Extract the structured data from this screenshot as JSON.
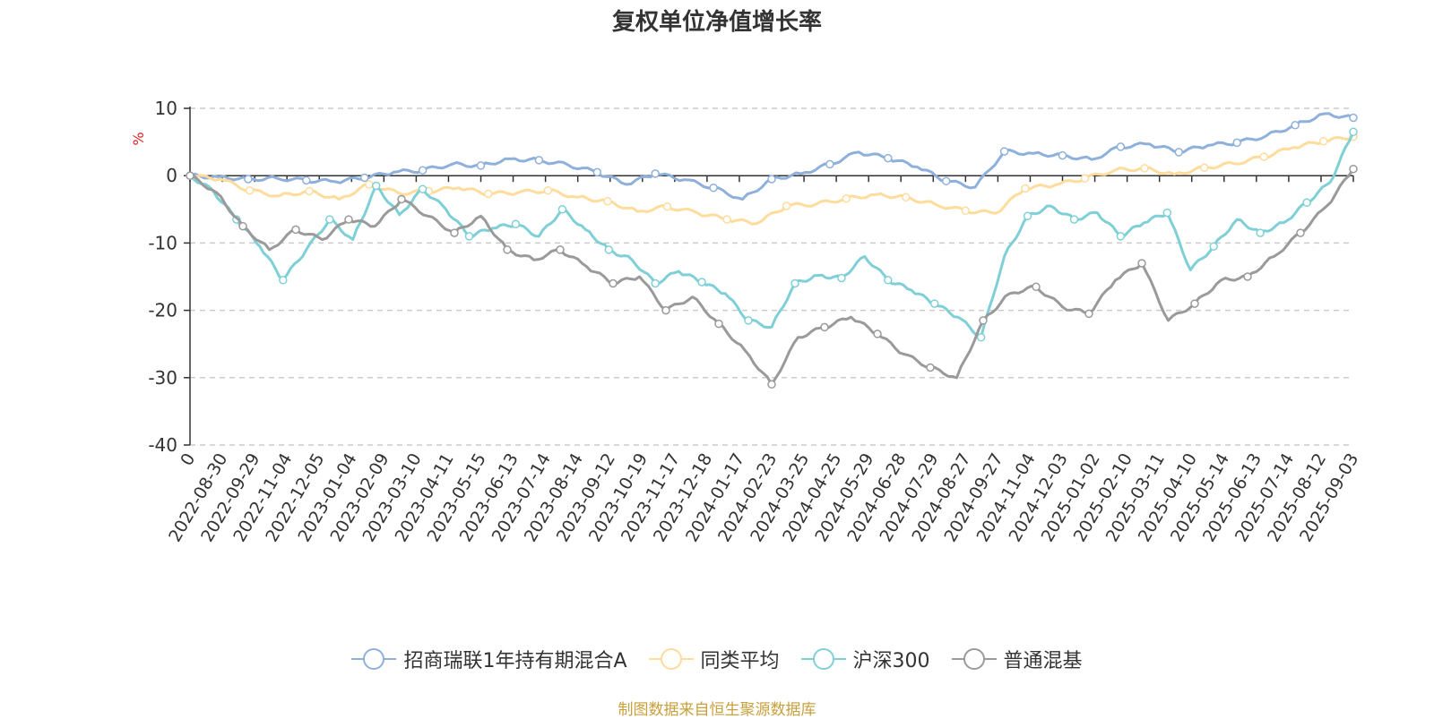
{
  "chart_data": {
    "type": "line",
    "title": "复权单位净值增长率",
    "ylabel": "%",
    "ylim": [
      -40,
      10
    ],
    "yticks": [
      "10",
      "0",
      "-10",
      "-20",
      "-30",
      "-40"
    ],
    "x_tick_labels": [
      "0",
      "2022-08-30",
      "2022-09-29",
      "2022-11-04",
      "2022-12-05",
      "2023-01-04",
      "2023-02-09",
      "2023-03-10",
      "2023-04-11",
      "2023-05-15",
      "2023-06-13",
      "2023-07-14",
      "2023-08-14",
      "2023-09-12",
      "2023-10-19",
      "2023-11-17",
      "2023-12-18",
      "2024-01-17",
      "2024-02-23",
      "2024-03-25",
      "2024-04-25",
      "2024-05-29",
      "2024-06-28",
      "2024-07-29",
      "2024-08-27",
      "2024-09-27",
      "2024-11-04",
      "2024-12-03",
      "2025-01-02",
      "2025-02-10",
      "2025-03-11",
      "2025-04-10",
      "2025-05-14",
      "2025-06-13",
      "2025-07-14",
      "2025-08-12",
      "2025-09-03"
    ],
    "grid": "horizontal dashed",
    "legend_position": "bottom",
    "source_note": "制图数据来自恒生聚源数据库",
    "series": [
      {
        "name": "招商瑞联1年持有期混合A",
        "color": "#8fb0db",
        "values": [
          0,
          -0.2,
          -0.5,
          -0.4,
          -0.7,
          -0.9,
          -0.3,
          0.5,
          0.8,
          1.7,
          1.5,
          2.5,
          2.3,
          1.6,
          0.5,
          -1.3,
          0.3,
          -0.6,
          -1.8,
          -3.5,
          -0.5,
          0.3,
          1.7,
          3.5,
          2.6,
          1.3,
          -0.8,
          -1.7,
          3.6,
          3.3,
          3.0,
          2.4,
          4.3,
          4.7,
          3.5,
          4.5,
          4.9,
          5.9,
          7.5,
          9.2,
          8.6
        ]
      },
      {
        "name": "同类平均",
        "color": "#fddc9c",
        "values": [
          0,
          -0.5,
          -2.2,
          -3.0,
          -2.3,
          -3.5,
          -1.3,
          -2.6,
          -2.3,
          -1.8,
          -2.7,
          -2.5,
          -2.2,
          -3.2,
          -3.8,
          -5.3,
          -4.6,
          -5.5,
          -6.5,
          -7.1,
          -4.5,
          -4.2,
          -3.4,
          -2.8,
          -3.2,
          -4.3,
          -5.2,
          -5.6,
          -1.9,
          -1.4,
          -0.4,
          0.8,
          1.1,
          0.2,
          1.2,
          1.8,
          2.8,
          4.2,
          5.1,
          5.8
        ]
      },
      {
        "name": "沪深300",
        "color": "#7fd0d6",
        "values": [
          0,
          -2.3,
          -6.5,
          -10.5,
          -15.5,
          -11,
          -6.5,
          -9.5,
          -1.5,
          -5.8,
          -2,
          -5,
          -9,
          -7.8,
          -7.2,
          -9,
          -5,
          -8,
          -11,
          -12.5,
          -16,
          -14.2,
          -15.8,
          -17.5,
          -21.5,
          -22.5,
          -16,
          -14.8,
          -15.2,
          -12,
          -15.5,
          -17,
          -19,
          -21,
          -24,
          -12,
          -6,
          -4.5,
          -6.5,
          -5.5,
          -9,
          -7,
          -5.5,
          -14,
          -10.5,
          -6.5,
          -8.5,
          -7,
          -4,
          -1,
          6.5
        ]
      },
      {
        "name": "普通混基",
        "color": "#9a9a9a",
        "values": [
          0,
          -2.5,
          -7.5,
          -11,
          -8,
          -9.5,
          -6.5,
          -7.5,
          -3.5,
          -6,
          -8.5,
          -6,
          -11,
          -12.5,
          -11,
          -13.5,
          -16,
          -15,
          -20,
          -18,
          -22,
          -26,
          -31,
          -24,
          -22.5,
          -21,
          -23.5,
          -26.5,
          -28.5,
          -30,
          -21.5,
          -17.5,
          -16.5,
          -19.5,
          -20.5,
          -15.5,
          -13,
          -21.5,
          -19,
          -15.5,
          -15,
          -12,
          -8.5,
          -4.5,
          1
        ]
      }
    ]
  }
}
